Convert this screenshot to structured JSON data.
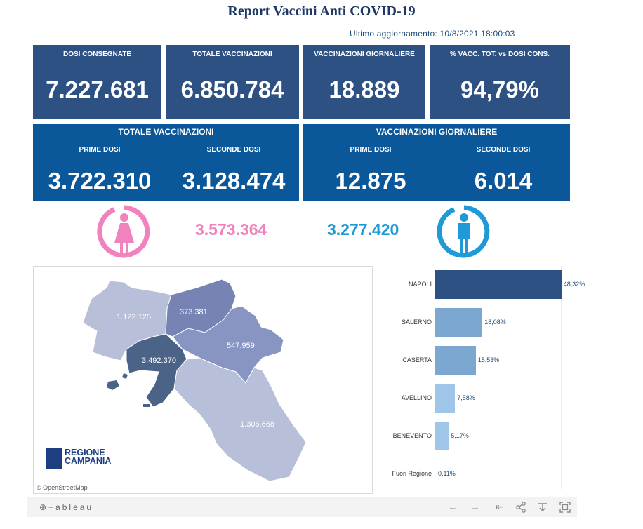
{
  "title": "Report Vaccini Anti COVID-19",
  "updated": "Ultimo aggiornamento: 10/8/2021  18:00:03",
  "kpis": [
    {
      "label": "DOSI  CONSEGNATE",
      "value": "7.227.681"
    },
    {
      "label": "TOTALE VACCINAZIONI",
      "value": "6.850.784"
    },
    {
      "label": "VACCINAZIONI GIORNALIERE",
      "value": "18.889"
    },
    {
      "label": "% VACC. TOT. vs DOSI CONS.",
      "value": "94,79%"
    }
  ],
  "totale": {
    "header": "TOTALE VACCINAZIONI",
    "prime_label": "PRIME DOSI",
    "prime_value": "3.722.310",
    "seconde_label": "SECONDE DOSI",
    "seconde_value": "3.128.474"
  },
  "giornaliere": {
    "header": "VACCINAZIONI GIORNALIERE",
    "prime_label": "PRIME DOSI",
    "prime_value": "12.875",
    "seconde_label": "SECONDE DOSI",
    "seconde_value": "6.014"
  },
  "gender": {
    "female_value": "3.573.364",
    "male_value": "3.277.420",
    "female_color": "#f082bd",
    "male_color": "#1f9ad6"
  },
  "map": {
    "labels": {
      "caserta": "1.122.125",
      "benevento": "373.381",
      "avellino": "547.959",
      "napoli": "3.492.370",
      "salerno": "1.306.668"
    },
    "attribution": "© OpenStreetMap",
    "logo_line1": "REGIONE",
    "logo_line2": "CAMPANIA"
  },
  "chart_data": {
    "type": "bar",
    "orientation": "horizontal",
    "categories": [
      "NAPOLI",
      "SALERNO",
      "CASERTA",
      "AVELLINO",
      "BENEVENTO",
      "Fuori Regione"
    ],
    "values": [
      48.32,
      18.08,
      15.53,
      7.58,
      5.17,
      0.11
    ],
    "value_labels": [
      "48,32%",
      "18,08%",
      "15,53%",
      "7,58%",
      "5,17%",
      "0,11%"
    ],
    "colors": [
      "#2d5183",
      "#7ba7d1",
      "#7ba7d1",
      "#9fc6e8",
      "#9fc6e8",
      "#c8def2"
    ],
    "xlim": [
      0,
      50
    ]
  },
  "toolbar": {
    "brand": "⊕+ableau",
    "undo": "←",
    "redo": "→",
    "revert": "⇤",
    "share": "share-icon",
    "download": "download-icon",
    "fullscreen": "fullscreen-icon"
  }
}
